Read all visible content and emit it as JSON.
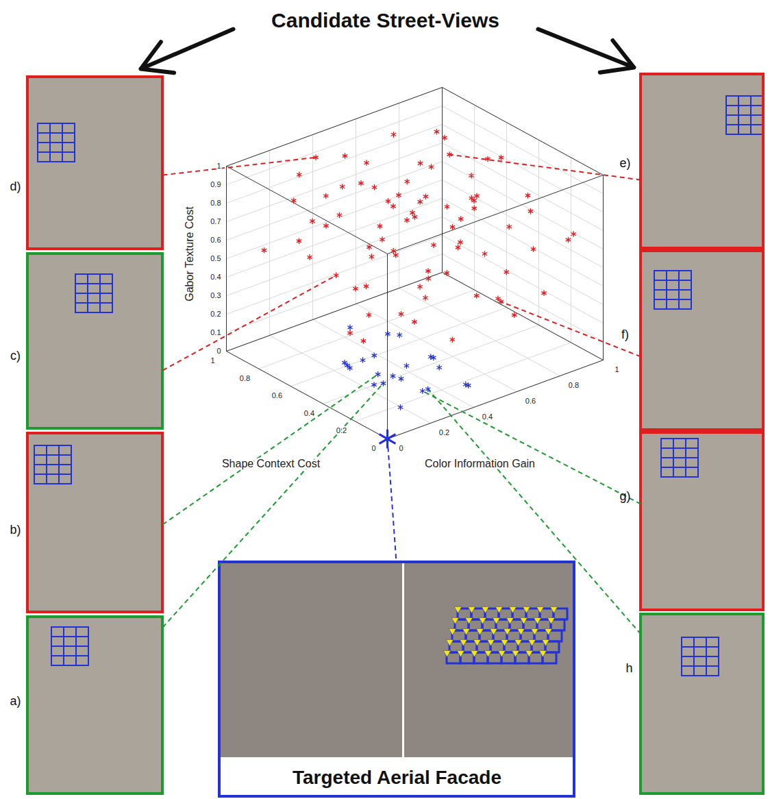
{
  "heading": "Candidate Street-Views",
  "panels": [
    {
      "label": "d)",
      "border": "#e01e1e",
      "link": "#e01e1e",
      "point": [
        0.9,
        0.34,
        0.95
      ]
    },
    {
      "label": "c)",
      "border": "#1c9b2e",
      "link": "#e01e1e",
      "point": [
        0.6,
        0.21,
        0.51
      ]
    },
    {
      "label": "b)",
      "border": "#e01e1e",
      "link": "#1c9b2e",
      "point": [
        0.3,
        0.18,
        0.13
      ]
    },
    {
      "label": "a)",
      "border": "#1c9b2e",
      "link": "#1c9b2e",
      "point": [
        0.2,
        0.13,
        0.15
      ]
    },
    {
      "label": "e)",
      "border": "#e01e1e",
      "link": "#e01e1e",
      "point": [
        0.7,
        0.81,
        0.86
      ]
    },
    {
      "label": "f)",
      "border": "#e01e1e",
      "link": "#e01e1e",
      "point": [
        0.3,
        0.75,
        0.28
      ]
    },
    {
      "label": "g)",
      "border": "#e01e1e",
      "link": "#1c9b2e",
      "point": [
        0.05,
        0.2,
        0.15
      ]
    },
    {
      "label": "h",
      "border": "#1c9b2e",
      "link": "#1c9b2e",
      "point": [
        0.15,
        0.3,
        0.07
      ]
    }
  ],
  "target": {
    "label": "Targeted Aerial Facade",
    "border": "#2431d6",
    "point": [
      0,
      0,
      0
    ]
  },
  "chart_data": {
    "type": "scatter3d",
    "xlabel": "Shape Context Cost",
    "ylabel": "Color Information Gain",
    "zlabel": "Gabor Texture Cost",
    "xlim": [
      0,
      1
    ],
    "ylim": [
      0,
      1
    ],
    "zlim": [
      0,
      1
    ],
    "xticks": [
      0,
      0.2,
      0.4,
      0.6,
      0.8,
      1
    ],
    "yticks": [
      0,
      0.2,
      0.4,
      0.6,
      0.8,
      1
    ],
    "zticks": [
      0,
      0.1,
      0.2,
      0.3,
      0.4,
      0.5,
      0.6,
      0.7,
      0.8,
      0.9,
      1
    ],
    "grid": true,
    "series": [
      {
        "color": "#e8161b",
        "marker": "asterisk",
        "points": [
          [
            0.9,
            0.34,
            0.95
          ],
          [
            0.7,
            0.81,
            0.86
          ],
          [
            0.3,
            0.75,
            0.28
          ],
          [
            0.6,
            0.21,
            0.51
          ],
          [
            0.8,
            0.5,
            0.9
          ],
          [
            0.6,
            0.6,
            0.95
          ],
          [
            0.5,
            0.4,
            0.85
          ],
          [
            0.4,
            0.7,
            0.8
          ],
          [
            0.7,
            0.3,
            0.75
          ],
          [
            0.9,
            0.7,
            0.92
          ],
          [
            0.3,
            0.5,
            0.9
          ],
          [
            0.55,
            0.8,
            0.7
          ],
          [
            0.65,
            0.45,
            0.65
          ],
          [
            0.85,
            0.2,
            0.8
          ],
          [
            0.45,
            0.55,
            0.6
          ],
          [
            0.75,
            0.65,
            0.55
          ],
          [
            0.35,
            0.3,
            0.7
          ],
          [
            0.2,
            0.6,
            0.65
          ],
          [
            0.95,
            0.5,
            0.7
          ],
          [
            0.5,
            0.9,
            0.9
          ],
          [
            0.8,
            0.8,
            0.75
          ],
          [
            0.6,
            0.1,
            0.85
          ],
          [
            0.25,
            0.85,
            0.75
          ],
          [
            0.4,
            0.2,
            0.55
          ],
          [
            0.7,
            0.55,
            0.45
          ],
          [
            0.5,
            0.7,
            0.5
          ],
          [
            0.3,
            0.4,
            0.45
          ],
          [
            0.85,
            0.35,
            0.6
          ],
          [
            0.6,
            0.85,
            0.6
          ],
          [
            0.9,
            0.9,
            0.85
          ],
          [
            0.15,
            0.45,
            0.8
          ],
          [
            0.45,
            0.9,
            0.55
          ],
          [
            0.75,
            0.15,
            0.65
          ],
          [
            0.55,
            0.35,
            0.95
          ],
          [
            0.35,
            0.65,
            0.98
          ],
          [
            0.65,
            0.75,
            1.0
          ],
          [
            0.8,
            0.6,
            0.65
          ],
          [
            0.2,
            0.3,
            0.6
          ],
          [
            0.5,
            0.5,
            0.75
          ],
          [
            0.4,
            0.45,
            0.9
          ],
          [
            0.7,
            0.4,
            0.88
          ],
          [
            0.95,
            0.8,
            0.6
          ],
          [
            0.3,
            0.9,
            0.5
          ],
          [
            0.6,
            0.3,
            0.4
          ],
          [
            0.45,
            0.25,
            0.35
          ],
          [
            0.25,
            0.6,
            0.4
          ],
          [
            0.55,
            0.6,
            0.35
          ],
          [
            0.4,
            0.85,
            0.35
          ],
          [
            0.15,
            0.7,
            0.3
          ],
          [
            0.35,
            0.15,
            0.3
          ],
          [
            0.2,
            0.45,
            0.25
          ],
          [
            0.5,
            0.2,
            0.25
          ],
          [
            0.1,
            0.8,
            0.4
          ],
          [
            0.75,
            0.9,
            0.45
          ],
          [
            0.85,
            0.55,
            0.4
          ],
          [
            0.65,
            0.95,
            0.8
          ],
          [
            0.9,
            0.1,
            0.55
          ],
          [
            0.05,
            0.55,
            0.5
          ],
          [
            0.1,
            0.35,
            0.7
          ],
          [
            0.55,
            0.05,
            0.7
          ],
          [
            0.15,
            0.95,
            0.6
          ],
          [
            0.3,
            0.2,
            0.85
          ],
          [
            0.8,
            0.4,
            0.98
          ],
          [
            0.45,
            0.75,
            0.78
          ],
          [
            0.65,
            0.2,
            0.92
          ],
          [
            0.2,
            0.8,
            0.88
          ],
          [
            0.7,
            0.7,
            0.68
          ],
          [
            0.35,
            0.45,
            0.55
          ],
          [
            0.6,
            0.5,
            0.82
          ],
          [
            0.25,
            0.25,
            0.45
          ],
          [
            0.85,
            0.75,
            0.5
          ],
          [
            0.4,
            0.6,
            0.7
          ],
          [
            0.1,
            0.2,
            0.5
          ],
          [
            0.5,
            0.3,
            0.62
          ],
          [
            0.95,
            0.3,
            0.85
          ],
          [
            0.05,
            0.9,
            0.7
          ]
        ]
      },
      {
        "color": "#2431d6",
        "marker": "asterisk",
        "points": [
          [
            0.3,
            0.18,
            0.13
          ],
          [
            0.2,
            0.13,
            0.15
          ],
          [
            0.05,
            0.2,
            0.15
          ],
          [
            0.15,
            0.3,
            0.07
          ],
          [
            0.35,
            0.2,
            0.2
          ],
          [
            0.4,
            0.1,
            0.18
          ],
          [
            0.25,
            0.25,
            0.1
          ],
          [
            0.1,
            0.1,
            0.25
          ],
          [
            0.3,
            0.05,
            0.22
          ],
          [
            0.45,
            0.15,
            0.12
          ],
          [
            0.2,
            0.35,
            0.2
          ],
          [
            0.05,
            0.4,
            0.1
          ],
          [
            0.15,
            0.05,
            0.2
          ],
          [
            0.35,
            0.35,
            0.08
          ],
          [
            0.1,
            0.45,
            0.05
          ],
          [
            0.5,
            0.2,
            0.28
          ],
          [
            0.25,
            0.4,
            0.15
          ],
          [
            0.4,
            0.3,
            0.25
          ],
          [
            0.12,
            0.15,
            0.05
          ],
          [
            0.3,
            0.28,
            0.3
          ],
          [
            0.08,
            0.3,
            0.22
          ],
          [
            0.22,
            0.05,
            0.3
          ]
        ]
      }
    ]
  }
}
